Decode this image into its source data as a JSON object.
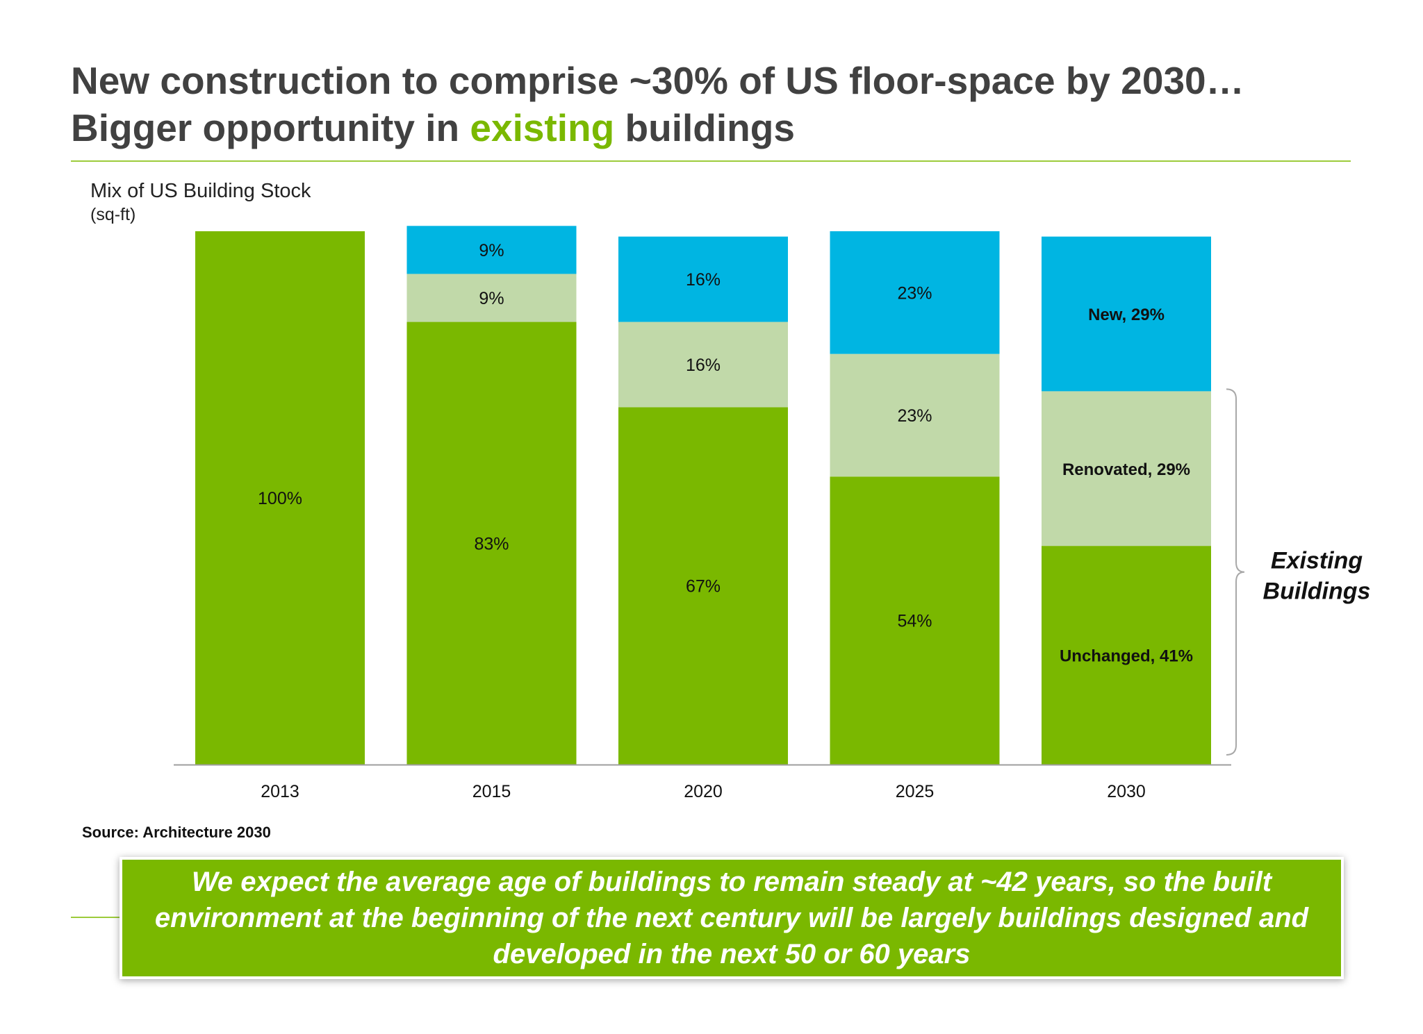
{
  "slide": {
    "title_line1": "New construction to comprise ~30% of US floor-space by 2030…",
    "title_line2_pre": "Bigger opportunity in ",
    "title_line2_highlight": "existing",
    "title_line2_post": " buildings",
    "source": "Source: Architecture 2030",
    "callout": "We expect the average age of buildings to remain steady at ~42 years, so the built environment at the beginning of the next century will be largely buildings designed and developed in the next 50 or 60 years"
  },
  "colors": {
    "accent_green": "#7ab800",
    "unchanged": "#7ab800",
    "renovated": "#c1d9a9",
    "new": "#00b5e2",
    "title_gray": "#414141"
  },
  "chart_data": {
    "type": "bar",
    "stacked": true,
    "title": "Mix of US Building Stock",
    "units": "(sq-ft)",
    "categories": [
      "2013",
      "2015",
      "2020",
      "2025",
      "2030"
    ],
    "ylim": [
      0,
      100
    ],
    "series": [
      {
        "key": "unchanged",
        "values": [
          100,
          83,
          67,
          54,
          41
        ],
        "labels": [
          "100%",
          "83%",
          "67%",
          "54%",
          "Unchanged, 41%"
        ]
      },
      {
        "key": "renovated",
        "values": [
          0,
          9,
          16,
          23,
          29
        ],
        "labels": [
          "",
          "9%",
          "16%",
          "23%",
          "Renovated, 29%"
        ]
      },
      {
        "key": "new",
        "values": [
          0,
          9,
          16,
          23,
          29
        ],
        "labels": [
          "",
          "9%",
          "16%",
          "23%",
          "New, 29%"
        ]
      }
    ],
    "bold_label_category": "2030",
    "annotation": {
      "line1": "Existing",
      "line2": "Buildings"
    },
    "grid": false,
    "legend": "none"
  }
}
